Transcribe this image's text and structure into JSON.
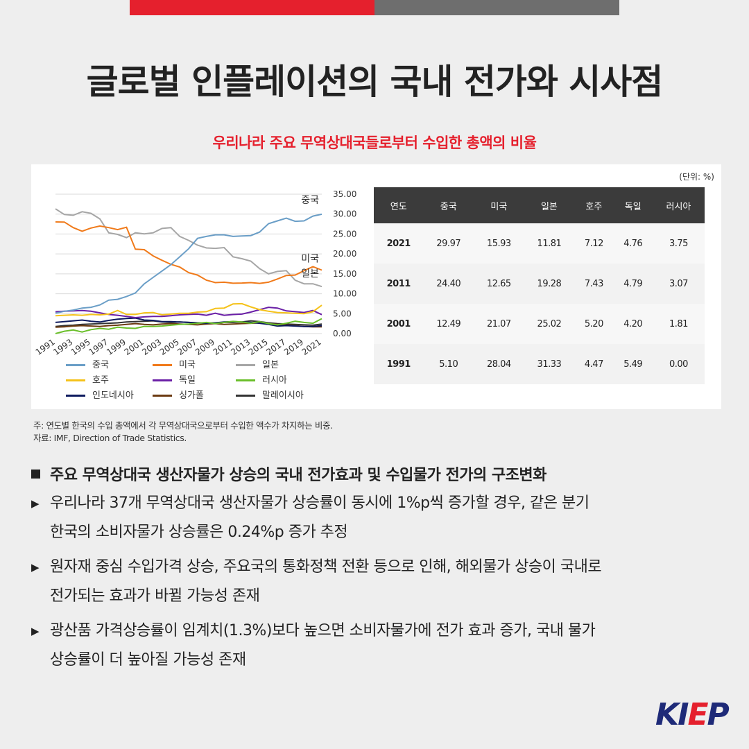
{
  "title": "글로벌 인플레이션의 국내 전가와 시사점",
  "subtitle": "우리나라 주요 무역상대국들로부터 수입한 총액의 비율",
  "unit": "(단위: %)",
  "colors": {
    "accent_red": "#e5202d",
    "top_bar_gray": "#6e6e6e",
    "logo_blue": "#1e2a78"
  },
  "chart_data": {
    "type": "line",
    "x": [
      1991,
      1992,
      1993,
      1994,
      1995,
      1996,
      1997,
      1998,
      1999,
      2000,
      2001,
      2002,
      2003,
      2004,
      2005,
      2006,
      2007,
      2008,
      2009,
      2010,
      2011,
      2012,
      2013,
      2014,
      2015,
      2016,
      2017,
      2018,
      2019,
      2020,
      2021
    ],
    "xticks": [
      "1991",
      "1993",
      "1995",
      "1997",
      "1999",
      "2001",
      "2003",
      "2005",
      "2007",
      "2009",
      "2011",
      "2013",
      "2015",
      "2017",
      "2019",
      "2021"
    ],
    "yticks": [
      "35.00",
      "30.00",
      "25.00",
      "20.00",
      "15.00",
      "10.00",
      "5.00",
      "0.00"
    ],
    "ylim": [
      0,
      35
    ],
    "legend_position": "bottom",
    "series": [
      {
        "name": "중국",
        "color": "#6a9ec7",
        "label": "중국",
        "values": [
          5.1,
          5.6,
          5.9,
          6.4,
          6.6,
          7.2,
          8.4,
          8.6,
          9.3,
          10.2,
          12.49,
          14.1,
          15.7,
          17.3,
          19.3,
          21.3,
          23.9,
          24.4,
          24.8,
          24.8,
          24.4,
          24.5,
          24.6,
          25.5,
          27.6,
          28.3,
          29.0,
          28.2,
          28.3,
          29.5,
          29.97
        ]
      },
      {
        "name": "미국",
        "color": "#f07a1a",
        "label": "미국",
        "values": [
          28.04,
          28.0,
          26.6,
          25.7,
          26.5,
          27.0,
          26.6,
          26.1,
          26.7,
          21.2,
          21.07,
          19.5,
          18.4,
          17.4,
          16.7,
          15.3,
          14.7,
          13.4,
          12.8,
          12.9,
          12.65,
          12.7,
          12.8,
          12.6,
          12.9,
          13.7,
          14.6,
          14.7,
          15.8,
          16.8,
          15.93
        ]
      },
      {
        "name": "일본",
        "color": "#a6a6a6",
        "label": "일본",
        "values": [
          31.33,
          29.9,
          29.7,
          30.6,
          30.2,
          28.8,
          25.3,
          24.9,
          24.1,
          25.3,
          25.02,
          25.3,
          26.4,
          26.6,
          24.4,
          23.4,
          22.2,
          21.5,
          21.4,
          21.6,
          19.28,
          18.8,
          18.2,
          16.3,
          15.0,
          15.6,
          15.8,
          13.4,
          12.5,
          12.5,
          11.81
        ]
      },
      {
        "name": "호주",
        "color": "#f5c21a",
        "label": "",
        "values": [
          4.47,
          4.6,
          4.7,
          4.6,
          4.8,
          4.7,
          4.9,
          5.8,
          4.8,
          4.8,
          5.2,
          5.3,
          4.7,
          4.9,
          5.1,
          5.1,
          5.4,
          5.5,
          6.3,
          6.4,
          7.43,
          7.5,
          6.7,
          6.0,
          5.6,
          5.3,
          5.2,
          5.1,
          5.0,
          5.5,
          7.12
        ]
      },
      {
        "name": "독일",
        "color": "#6a1fa6",
        "label": "",
        "values": [
          5.49,
          5.6,
          5.7,
          5.8,
          5.6,
          5.2,
          4.8,
          4.6,
          4.3,
          4.0,
          4.2,
          4.3,
          4.3,
          4.5,
          4.7,
          4.8,
          4.9,
          4.6,
          5.1,
          4.6,
          4.79,
          4.9,
          5.4,
          6.0,
          6.6,
          6.4,
          5.7,
          5.5,
          5.3,
          5.8,
          4.76
        ]
      },
      {
        "name": "러시아",
        "color": "#6abf2a",
        "label": "",
        "values": [
          0.0,
          0.6,
          0.9,
          0.4,
          1.0,
          1.3,
          1.1,
          1.6,
          1.4,
          1.3,
          1.81,
          1.8,
          1.9,
          2.1,
          2.3,
          2.4,
          2.6,
          2.8,
          2.5,
          2.8,
          3.07,
          2.9,
          2.6,
          3.0,
          2.5,
          2.2,
          2.6,
          3.1,
          2.8,
          2.6,
          3.75
        ]
      },
      {
        "name": "인도네시아",
        "color": "#0d1a5e",
        "label": "",
        "values": [
          2.8,
          3.0,
          3.2,
          3.4,
          3.1,
          2.9,
          3.3,
          3.6,
          3.8,
          3.9,
          3.4,
          3.3,
          3.0,
          3.0,
          2.9,
          2.8,
          2.7,
          2.6,
          2.7,
          2.9,
          3.0,
          2.9,
          2.8,
          2.6,
          2.3,
          1.9,
          2.0,
          1.9,
          1.8,
          1.8,
          2.0
        ]
      },
      {
        "name": "싱가폴",
        "color": "#6b3a10",
        "label": "",
        "values": [
          1.6,
          1.7,
          1.9,
          2.0,
          1.9,
          1.8,
          2.0,
          2.1,
          2.3,
          2.5,
          2.3,
          2.2,
          2.4,
          2.5,
          2.4,
          2.3,
          2.2,
          2.4,
          2.5,
          2.3,
          2.4,
          2.5,
          2.6,
          2.7,
          2.5,
          2.3,
          2.1,
          2.0,
          1.8,
          1.7,
          1.7
        ]
      },
      {
        "name": "말레이시아",
        "color": "#333333",
        "label": "",
        "values": [
          1.8,
          2.0,
          2.1,
          2.3,
          2.4,
          2.5,
          2.6,
          2.7,
          2.9,
          3.0,
          3.1,
          3.2,
          2.9,
          2.8,
          2.9,
          2.8,
          2.7,
          2.6,
          2.7,
          2.8,
          2.8,
          2.9,
          3.2,
          3.0,
          2.7,
          2.5,
          2.4,
          2.3,
          2.2,
          2.1,
          2.4
        ]
      }
    ]
  },
  "table": {
    "headers": [
      "연도",
      "중국",
      "미국",
      "일본",
      "호주",
      "독일",
      "러시아"
    ],
    "rows": [
      [
        "2021",
        "29.97",
        "15.93",
        "11.81",
        "7.12",
        "4.76",
        "3.75"
      ],
      [
        "2011",
        "24.40",
        "12.65",
        "19.28",
        "7.43",
        "4.79",
        "3.07"
      ],
      [
        "2001",
        "12.49",
        "21.07",
        "25.02",
        "5.20",
        "4.20",
        "1.81"
      ],
      [
        "1991",
        "5.10",
        "28.04",
        "31.33",
        "4.47",
        "5.49",
        "0.00"
      ]
    ]
  },
  "notes": {
    "note": "주: 연도별 한국의 수입 총액에서 각 무역상대국으로부터 수입한 액수가 차지하는 비중.",
    "source": "자료: IMF, Direction of Trade Statistics."
  },
  "section": {
    "heading": "주요 무역상대국 생산자물가 상승의 국내 전가효과 및 수입물가 전가의 구조변화",
    "bullets": [
      {
        "line1": "우리나라 37개 무역상대국 생산자물가 상승률이 동시에 1%p씩 증가할 경우, 같은 분기",
        "line2": "한국의 소비자물가 상승률은 0.24%p 증가 추정"
      },
      {
        "line1": "원자재 중심 수입가격 상승, 주요국의 통화정책 전환 등으로 인해, 해외물가 상승이 국내로",
        "line2": "전가되는 효과가 바뀔 가능성 존재"
      },
      {
        "line1": "광산품 가격상승률이 임계치(1.3%)보다 높으면 소비자물가에 전가 효과 증가, 국내 물가",
        "line2": "상승률이 더 높아질 가능성 존재"
      }
    ]
  },
  "logo": {
    "part1": "KI",
    "part2": "E",
    "part3": "P"
  }
}
